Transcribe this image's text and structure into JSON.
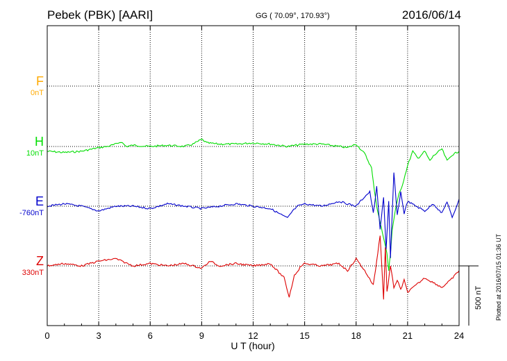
{
  "header": {
    "station": "Pebek (PBK)  [AARI]",
    "coords": "GG ( 70.09°, 170.93°)",
    "date": "2016/06/14"
  },
  "footer": {
    "plotted": "Plotted at 2016/07/15 01:36 UT"
  },
  "scale_label": "500 nT",
  "colors": {
    "F": "#ffaa00",
    "H": "#00dd00",
    "E": "#0000cc",
    "Z": "#dd0000"
  },
  "chart_data": {
    "type": "line",
    "xlabel": "U T (hour)",
    "xlim": [
      0,
      24
    ],
    "xticks": [
      "0",
      "3",
      "6",
      "9",
      "12",
      "15",
      "18",
      "21",
      "24"
    ],
    "y_unit": "nT",
    "scale_bar_nT": 500,
    "series": [
      {
        "name": "F",
        "offset": "0nT",
        "x": [],
        "y": []
      },
      {
        "name": "H",
        "offset": "10nT",
        "x": [
          0,
          1,
          2,
          3,
          3.5,
          4,
          4.3,
          4.6,
          5,
          6,
          7,
          8,
          8.5,
          9,
          9.3,
          10,
          11,
          12,
          13,
          14,
          15,
          16,
          17,
          17.5,
          18,
          18.5,
          18.9,
          19,
          19.2,
          19.4,
          19.6,
          19.8,
          19.9,
          20,
          20.1,
          20.3,
          20.5,
          20.7,
          21,
          21.3,
          21.6,
          22,
          22.3,
          22.5,
          23,
          23.3,
          23.6,
          24
        ],
        "y": [
          -40,
          -50,
          -40,
          -10,
          0,
          20,
          40,
          0,
          10,
          0,
          10,
          0,
          20,
          60,
          30,
          20,
          20,
          30,
          20,
          0,
          20,
          20,
          0,
          -10,
          20,
          -60,
          -180,
          -300,
          -500,
          -640,
          -760,
          -900,
          -1040,
          -900,
          -700,
          -520,
          -400,
          -320,
          -160,
          -40,
          -100,
          -40,
          -120,
          -80,
          -20,
          -120,
          -70,
          -40
        ]
      },
      {
        "name": "E",
        "offset": "-760nT",
        "x": [
          0,
          1,
          2,
          3,
          4,
          5,
          6,
          7,
          8,
          9,
          10,
          11,
          12,
          13,
          13.5,
          14,
          14.3,
          14.6,
          15,
          16,
          17,
          17.5,
          18,
          18.5,
          18.8,
          19,
          19.2,
          19.4,
          19.6,
          19.75,
          19.9,
          20,
          20.2,
          20.4,
          20.6,
          20.8,
          21,
          21.5,
          22,
          22.5,
          23,
          23.3,
          23.6,
          24
        ],
        "y": [
          0,
          20,
          0,
          -40,
          0,
          0,
          -20,
          20,
          0,
          -20,
          0,
          20,
          0,
          -20,
          -60,
          -100,
          -40,
          0,
          20,
          0,
          40,
          20,
          0,
          80,
          120,
          -60,
          160,
          -200,
          80,
          -360,
          40,
          -440,
          280,
          -80,
          120,
          -60,
          40,
          0,
          -40,
          20,
          -60,
          40,
          -100,
          60
        ]
      },
      {
        "name": "Z",
        "offset": "330nT",
        "x": [
          0,
          1,
          2,
          3,
          4,
          5,
          6,
          7,
          8,
          9,
          9.5,
          10,
          11,
          12,
          13,
          13.8,
          14.1,
          14.4,
          14.8,
          15,
          16,
          17,
          17.5,
          18,
          18.5,
          19,
          19.2,
          19.4,
          19.6,
          19.7,
          19.8,
          20,
          20.2,
          20.4,
          20.6,
          20.8,
          21,
          21.5,
          22,
          22.5,
          23,
          23.5,
          24
        ],
        "y": [
          0,
          20,
          0,
          40,
          60,
          0,
          20,
          0,
          20,
          -20,
          40,
          0,
          20,
          0,
          20,
          -100,
          -260,
          -80,
          0,
          20,
          0,
          20,
          -40,
          60,
          -40,
          -160,
          40,
          260,
          -280,
          160,
          -220,
          0,
          -180,
          -120,
          -200,
          -120,
          -220,
          -160,
          -100,
          -140,
          -180,
          -120,
          -40
        ]
      }
    ]
  }
}
